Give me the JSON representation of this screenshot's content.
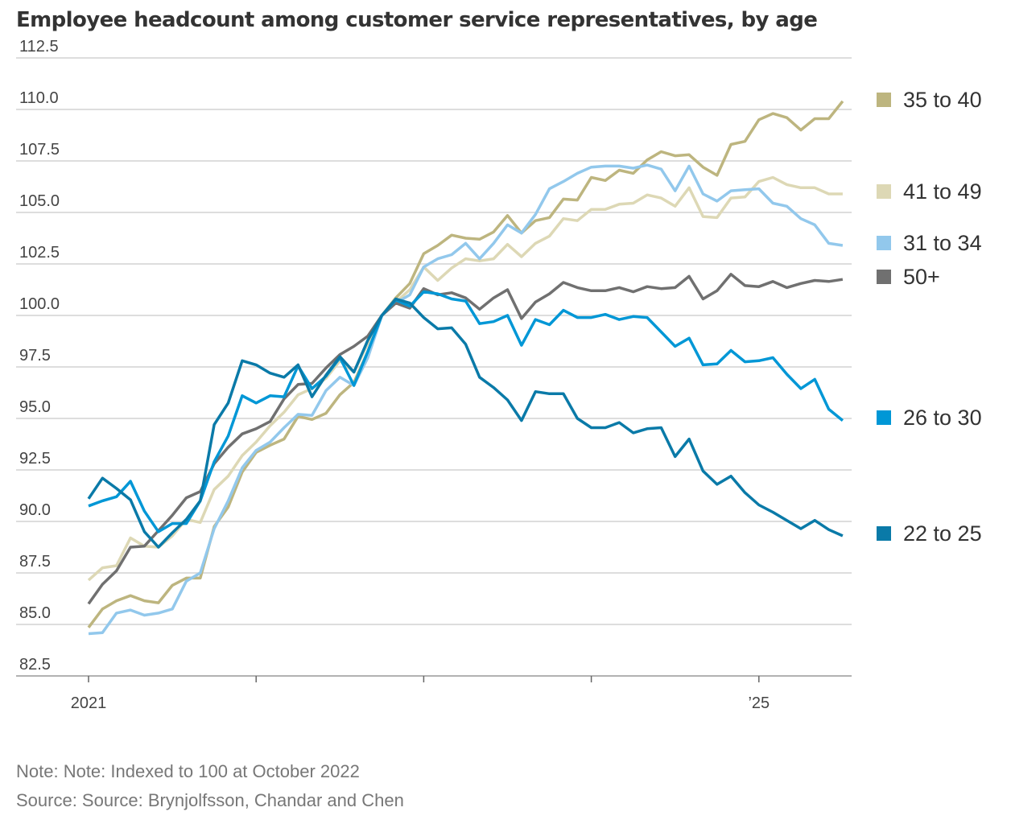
{
  "chart_data": {
    "type": "line",
    "title": "Employee headcount among customer service representatives, by age",
    "note": "Note: Note: Indexed to 100 at October 2022",
    "source": "Source: Source: Brynjolfsson, Chandar and Chen",
    "x_start": "2021-01",
    "x_end": "2025-07",
    "x_frequency": "monthly",
    "x_ticks": [
      "2021",
      "",
      "",
      "",
      "’25"
    ],
    "ylim": [
      82.5,
      112.5
    ],
    "y_ticks": [
      "82.5",
      "85.0",
      "87.5",
      "90.0",
      "92.5",
      "95.0",
      "97.5",
      "100.0",
      "102.5",
      "105.0",
      "107.5",
      "110.0",
      "112.5"
    ],
    "grid": true,
    "legend": "right, labels at line ends",
    "series": [
      {
        "name": "35 to 40",
        "color": "#bdb57f",
        "values": [
          84.85,
          85.75,
          86.15,
          86.4,
          86.15,
          86.05,
          86.9,
          87.25,
          87.25,
          89.75,
          90.7,
          92.4,
          93.35,
          93.7,
          94.0,
          95.1,
          94.95,
          95.25,
          96.15,
          96.75,
          98.25,
          100,
          100.85,
          101.55,
          103.0,
          103.4,
          103.9,
          103.75,
          103.7,
          104.05,
          104.85,
          104.0,
          104.6,
          104.75,
          105.65,
          105.6,
          106.7,
          106.55,
          107.05,
          106.9,
          107.55,
          107.95,
          107.75,
          107.8,
          107.2,
          106.8,
          108.3,
          108.45,
          109.5,
          109.8,
          109.6,
          109.0,
          109.55,
          109.55,
          110.4
        ]
      },
      {
        "name": "41 to 49",
        "color": "#ddd8b5",
        "values": [
          87.15,
          87.75,
          87.85,
          89.2,
          88.8,
          88.75,
          89.3,
          90.1,
          89.95,
          91.55,
          92.2,
          93.2,
          93.85,
          94.65,
          95.3,
          96.15,
          96.45,
          96.95,
          97.8,
          97.25,
          98.65,
          100,
          100.65,
          101.25,
          102.35,
          101.7,
          102.3,
          102.75,
          102.65,
          102.75,
          103.45,
          102.85,
          103.5,
          103.85,
          104.7,
          104.6,
          105.15,
          105.15,
          105.4,
          105.45,
          105.85,
          105.7,
          105.3,
          106.2,
          104.8,
          104.75,
          105.7,
          105.75,
          106.5,
          106.7,
          106.35,
          106.2,
          106.2,
          105.9,
          105.9
        ]
      },
      {
        "name": "31 to 34",
        "color": "#92c8ec",
        "values": [
          84.55,
          84.6,
          85.55,
          85.7,
          85.45,
          85.55,
          85.75,
          87.1,
          87.5,
          89.65,
          91.0,
          92.6,
          93.45,
          93.85,
          94.55,
          95.2,
          95.15,
          96.35,
          97.0,
          96.6,
          97.95,
          100,
          100.6,
          101.0,
          102.35,
          102.75,
          102.95,
          103.5,
          102.75,
          103.5,
          104.4,
          104.0,
          104.9,
          106.15,
          106.5,
          106.9,
          107.2,
          107.25,
          107.25,
          107.15,
          107.3,
          107.1,
          106.05,
          107.25,
          105.9,
          105.55,
          106.05,
          106.1,
          106.15,
          105.45,
          105.3,
          104.7,
          104.4,
          103.5,
          103.4
        ]
      },
      {
        "name": "50+",
        "color": "#707070",
        "values": [
          86.0,
          86.95,
          87.6,
          88.75,
          88.8,
          89.55,
          90.3,
          91.15,
          91.45,
          92.8,
          93.6,
          94.25,
          94.5,
          94.85,
          95.95,
          96.65,
          96.7,
          97.45,
          98.1,
          98.5,
          99.0,
          100,
          100.6,
          100.35,
          101.3,
          101.0,
          101.1,
          100.85,
          100.3,
          100.85,
          101.25,
          99.85,
          100.65,
          101.05,
          101.6,
          101.35,
          101.2,
          101.2,
          101.35,
          101.15,
          101.4,
          101.3,
          101.35,
          101.9,
          100.8,
          101.2,
          102.0,
          101.45,
          101.4,
          101.65,
          101.35,
          101.55,
          101.7,
          101.65,
          101.75
        ]
      },
      {
        "name": "26 to 30",
        "color": "#0097d6",
        "values": [
          90.75,
          91.0,
          91.2,
          91.95,
          90.5,
          89.5,
          89.9,
          89.9,
          91.0,
          92.9,
          94.15,
          96.1,
          95.75,
          96.1,
          96.05,
          97.55,
          96.45,
          97.05,
          97.95,
          96.6,
          98.25,
          100,
          100.75,
          100.45,
          101.15,
          101.05,
          100.8,
          100.7,
          99.6,
          99.7,
          100.0,
          98.55,
          99.8,
          99.55,
          100.25,
          99.9,
          99.9,
          100.05,
          99.8,
          99.95,
          99.9,
          99.2,
          98.5,
          98.9,
          97.6,
          97.65,
          98.3,
          97.75,
          97.8,
          97.95,
          97.15,
          96.45,
          96.9,
          95.45,
          94.9
        ]
      },
      {
        "name": "22 to 25",
        "color": "#0a7aa8",
        "values": [
          91.1,
          92.1,
          91.6,
          91.05,
          89.5,
          88.75,
          89.45,
          90.1,
          91.0,
          94.7,
          95.75,
          97.8,
          97.6,
          97.2,
          97.0,
          97.6,
          96.05,
          97.1,
          98.0,
          97.25,
          98.8,
          100,
          100.8,
          100.6,
          99.9,
          99.35,
          99.4,
          98.6,
          97.0,
          96.5,
          95.9,
          94.9,
          96.3,
          96.2,
          96.2,
          95.0,
          94.55,
          94.55,
          94.8,
          94.3,
          94.5,
          94.55,
          93.15,
          94.0,
          92.45,
          91.8,
          92.2,
          91.4,
          90.8,
          90.45,
          90.05,
          89.65,
          90.05,
          89.6,
          89.3
        ]
      }
    ]
  }
}
